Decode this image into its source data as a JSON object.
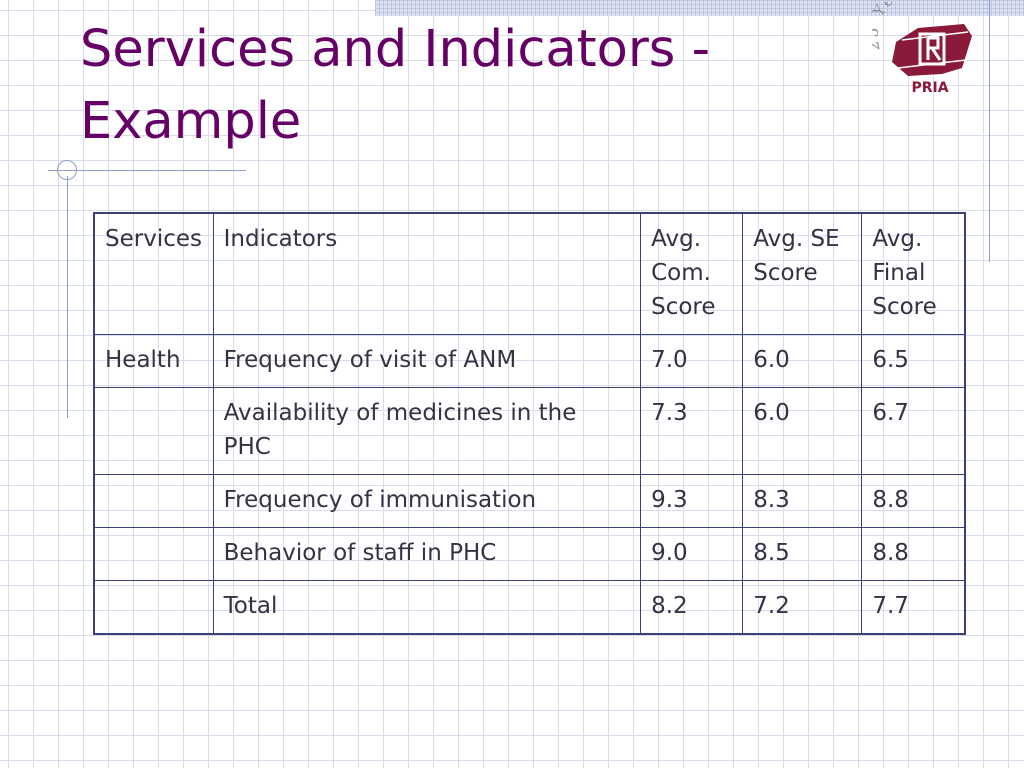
{
  "slide": {
    "title_line1": "Services and Indicators -",
    "title_line2": "Example"
  },
  "logo": {
    "arc_text": "25 Years",
    "name": "PRIA",
    "colors": {
      "maroon": "#8b1a3a",
      "grey": "#8c8c8c"
    }
  },
  "table": {
    "headers": [
      "Services",
      "Indicators",
      "Avg. Com. Score",
      "Avg. SE Score",
      "Avg. Final Score"
    ],
    "rows": [
      {
        "service": "Health",
        "indicator": "Frequency of visit of ANM",
        "com": "7.0",
        "se": "6.0",
        "final": "6.5"
      },
      {
        "service": "",
        "indicator": "Availability of medicines in the PHC",
        "com": "7.3",
        "se": "6.0",
        "final": "6.7"
      },
      {
        "service": "",
        "indicator": "Frequency of immunisation",
        "com": "9.3",
        "se": "8.3",
        "final": "8.8"
      },
      {
        "service": "",
        "indicator": "Behavior of staff in PHC",
        "com": "9.0",
        "se": "8.5",
        "final": "8.8"
      },
      {
        "service": "",
        "indicator": "Total",
        "com": "8.2",
        "se": "7.2",
        "final": "7.7"
      }
    ]
  },
  "colors": {
    "title": "#660066",
    "table_border": "#3b3f7a",
    "text": "#333344",
    "grid": "#d9dcec"
  }
}
